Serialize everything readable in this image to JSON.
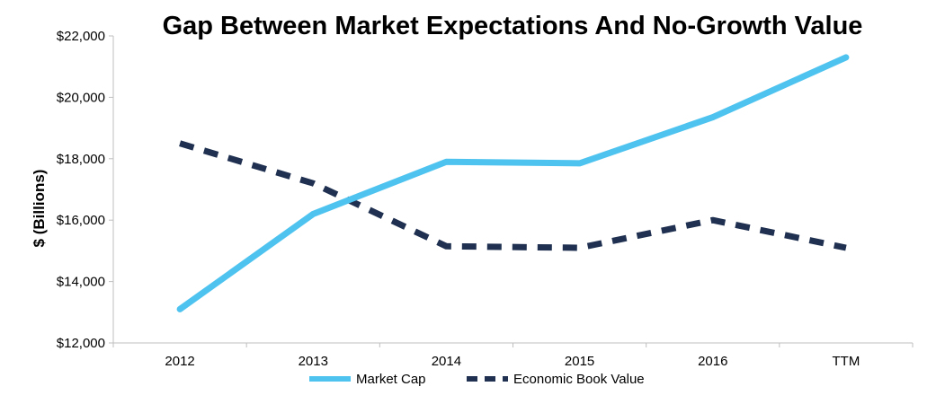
{
  "chart_data": {
    "type": "line",
    "title": "Gap Between Market Expectations And No-Growth Value",
    "xlabel": "",
    "ylabel": "$ (Billions)",
    "categories": [
      "2012",
      "2013",
      "2014",
      "2015",
      "2016",
      "TTM"
    ],
    "ylim": [
      12000,
      22000
    ],
    "yticks": [
      12000,
      14000,
      16000,
      18000,
      20000,
      22000
    ],
    "ytick_labels": [
      "$12,000",
      "$14,000",
      "$16,000",
      "$18,000",
      "$20,000",
      "$22,000"
    ],
    "grid": false,
    "legend_position": "bottom",
    "series": [
      {
        "name": "Market Cap",
        "values": [
          13100,
          16200,
          17900,
          17850,
          19350,
          21300
        ],
        "color": "#4ec3ef",
        "style": "solid"
      },
      {
        "name": "Economic Book Value",
        "values": [
          18500,
          17200,
          15150,
          15100,
          16000,
          15100
        ],
        "color": "#1f3050",
        "style": "dashed"
      }
    ]
  }
}
